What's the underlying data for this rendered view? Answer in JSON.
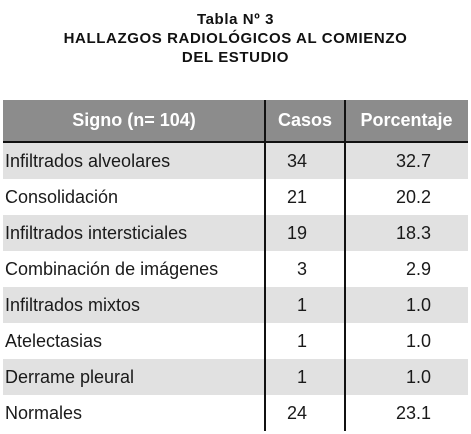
{
  "caption": {
    "line1": "Tabla Nº 3",
    "line2": "HALLAZGOS RADIOLÓGICOS AL COMIENZO",
    "line3": "DEL ESTUDIO"
  },
  "table": {
    "headers": {
      "sign": "Signo (n= 104)",
      "cases": "Casos",
      "percent": "Porcentaje"
    },
    "rows": [
      {
        "sign": "Infiltrados alveolares",
        "cases": "34",
        "percent": "32.7"
      },
      {
        "sign": "Consolidación",
        "cases": "21",
        "percent": "20.2"
      },
      {
        "sign": "Infiltrados intersticiales",
        "cases": "19",
        "percent": "18.3"
      },
      {
        "sign": "Combinación de imágenes",
        "cases": "3",
        "percent": "2.9"
      },
      {
        "sign": "Infiltrados mixtos",
        "cases": "1",
        "percent": "1.0"
      },
      {
        "sign": "Atelectasias",
        "cases": "1",
        "percent": "1.0"
      },
      {
        "sign": "Derrame pleural",
        "cases": "1",
        "percent": "1.0"
      },
      {
        "sign": "Normales",
        "cases": "24",
        "percent": "23.1"
      }
    ]
  },
  "colors": {
    "header_bg": "#8c8c8c",
    "header_text": "#ffffff",
    "shaded_row": "#e1e1e1",
    "rule": "#111111"
  }
}
